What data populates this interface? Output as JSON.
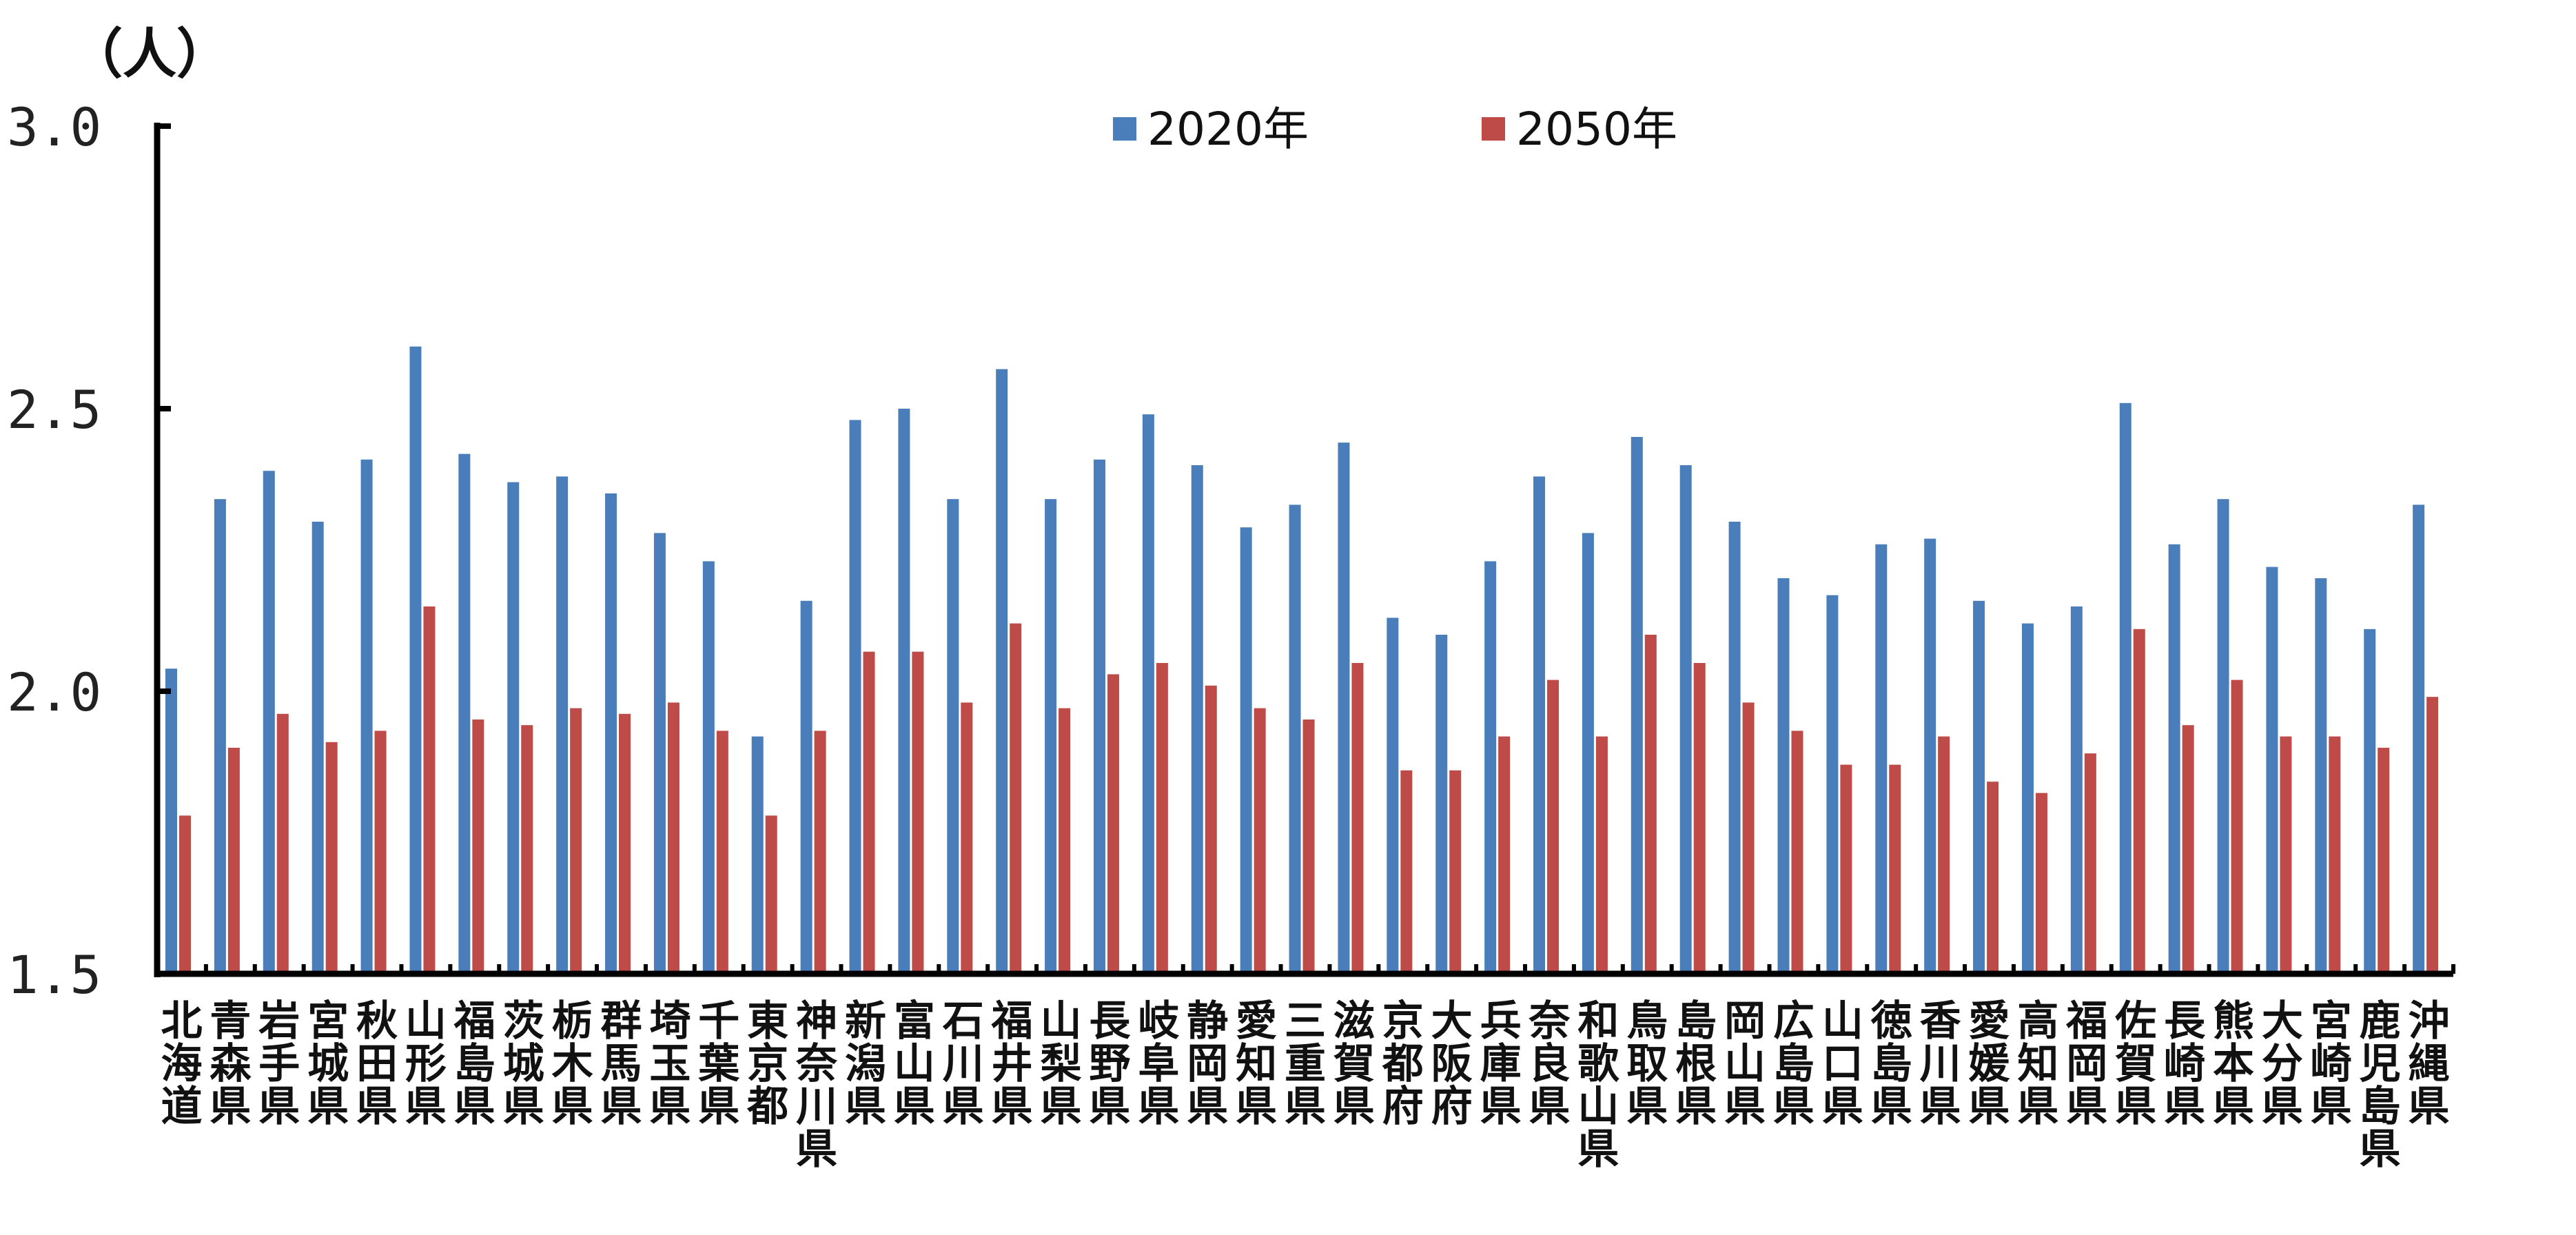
{
  "chart_data": {
    "type": "bar",
    "unit_label": "（人）",
    "ylim": [
      1.5,
      3.0
    ],
    "yticks": [
      "1.5",
      "2.0",
      "2.5",
      "3.0"
    ],
    "legend_position": "top-center",
    "grid": false,
    "categories": [
      "北海道",
      "青森県",
      "岩手県",
      "宮城県",
      "秋田県",
      "山形県",
      "福島県",
      "茨城県",
      "栃木県",
      "群馬県",
      "埼玉県",
      "千葉県",
      "東京都",
      "神奈川県",
      "新潟県",
      "富山県",
      "石川県",
      "福井県",
      "山梨県",
      "長野県",
      "岐阜県",
      "静岡県",
      "愛知県",
      "三重県",
      "滋賀県",
      "京都府",
      "大阪府",
      "兵庫県",
      "奈良県",
      "和歌山県",
      "鳥取県",
      "島根県",
      "岡山県",
      "広島県",
      "山口県",
      "徳島県",
      "香川県",
      "愛媛県",
      "高知県",
      "福岡県",
      "佐賀県",
      "長崎県",
      "熊本県",
      "大分県",
      "宮崎県",
      "鹿児島県",
      "沖縄県"
    ],
    "series": [
      {
        "name": "2020年",
        "color": "#4a7ebb",
        "values": [
          2.04,
          2.34,
          2.39,
          2.3,
          2.41,
          2.61,
          2.42,
          2.37,
          2.38,
          2.35,
          2.28,
          2.23,
          1.92,
          2.16,
          2.48,
          2.5,
          2.34,
          2.57,
          2.34,
          2.41,
          2.49,
          2.4,
          2.29,
          2.33,
          2.44,
          2.13,
          2.1,
          2.23,
          2.38,
          2.28,
          2.45,
          2.4,
          2.3,
          2.2,
          2.17,
          2.26,
          2.27,
          2.16,
          2.12,
          2.15,
          2.51,
          2.26,
          2.34,
          2.22,
          2.2,
          2.11,
          2.33
        ]
      },
      {
        "name": "2050年",
        "color": "#be4b48",
        "values": [
          1.78,
          1.9,
          1.96,
          1.91,
          1.93,
          2.15,
          1.95,
          1.94,
          1.97,
          1.96,
          1.98,
          1.93,
          1.78,
          1.93,
          2.07,
          2.07,
          1.98,
          2.12,
          1.97,
          2.03,
          2.05,
          2.01,
          1.97,
          1.95,
          2.05,
          1.86,
          1.86,
          1.92,
          2.02,
          1.92,
          2.1,
          2.05,
          1.98,
          1.93,
          1.87,
          1.87,
          1.92,
          1.84,
          1.82,
          1.89,
          2.11,
          1.94,
          2.02,
          1.92,
          1.92,
          1.9,
          1.99
        ]
      }
    ]
  }
}
